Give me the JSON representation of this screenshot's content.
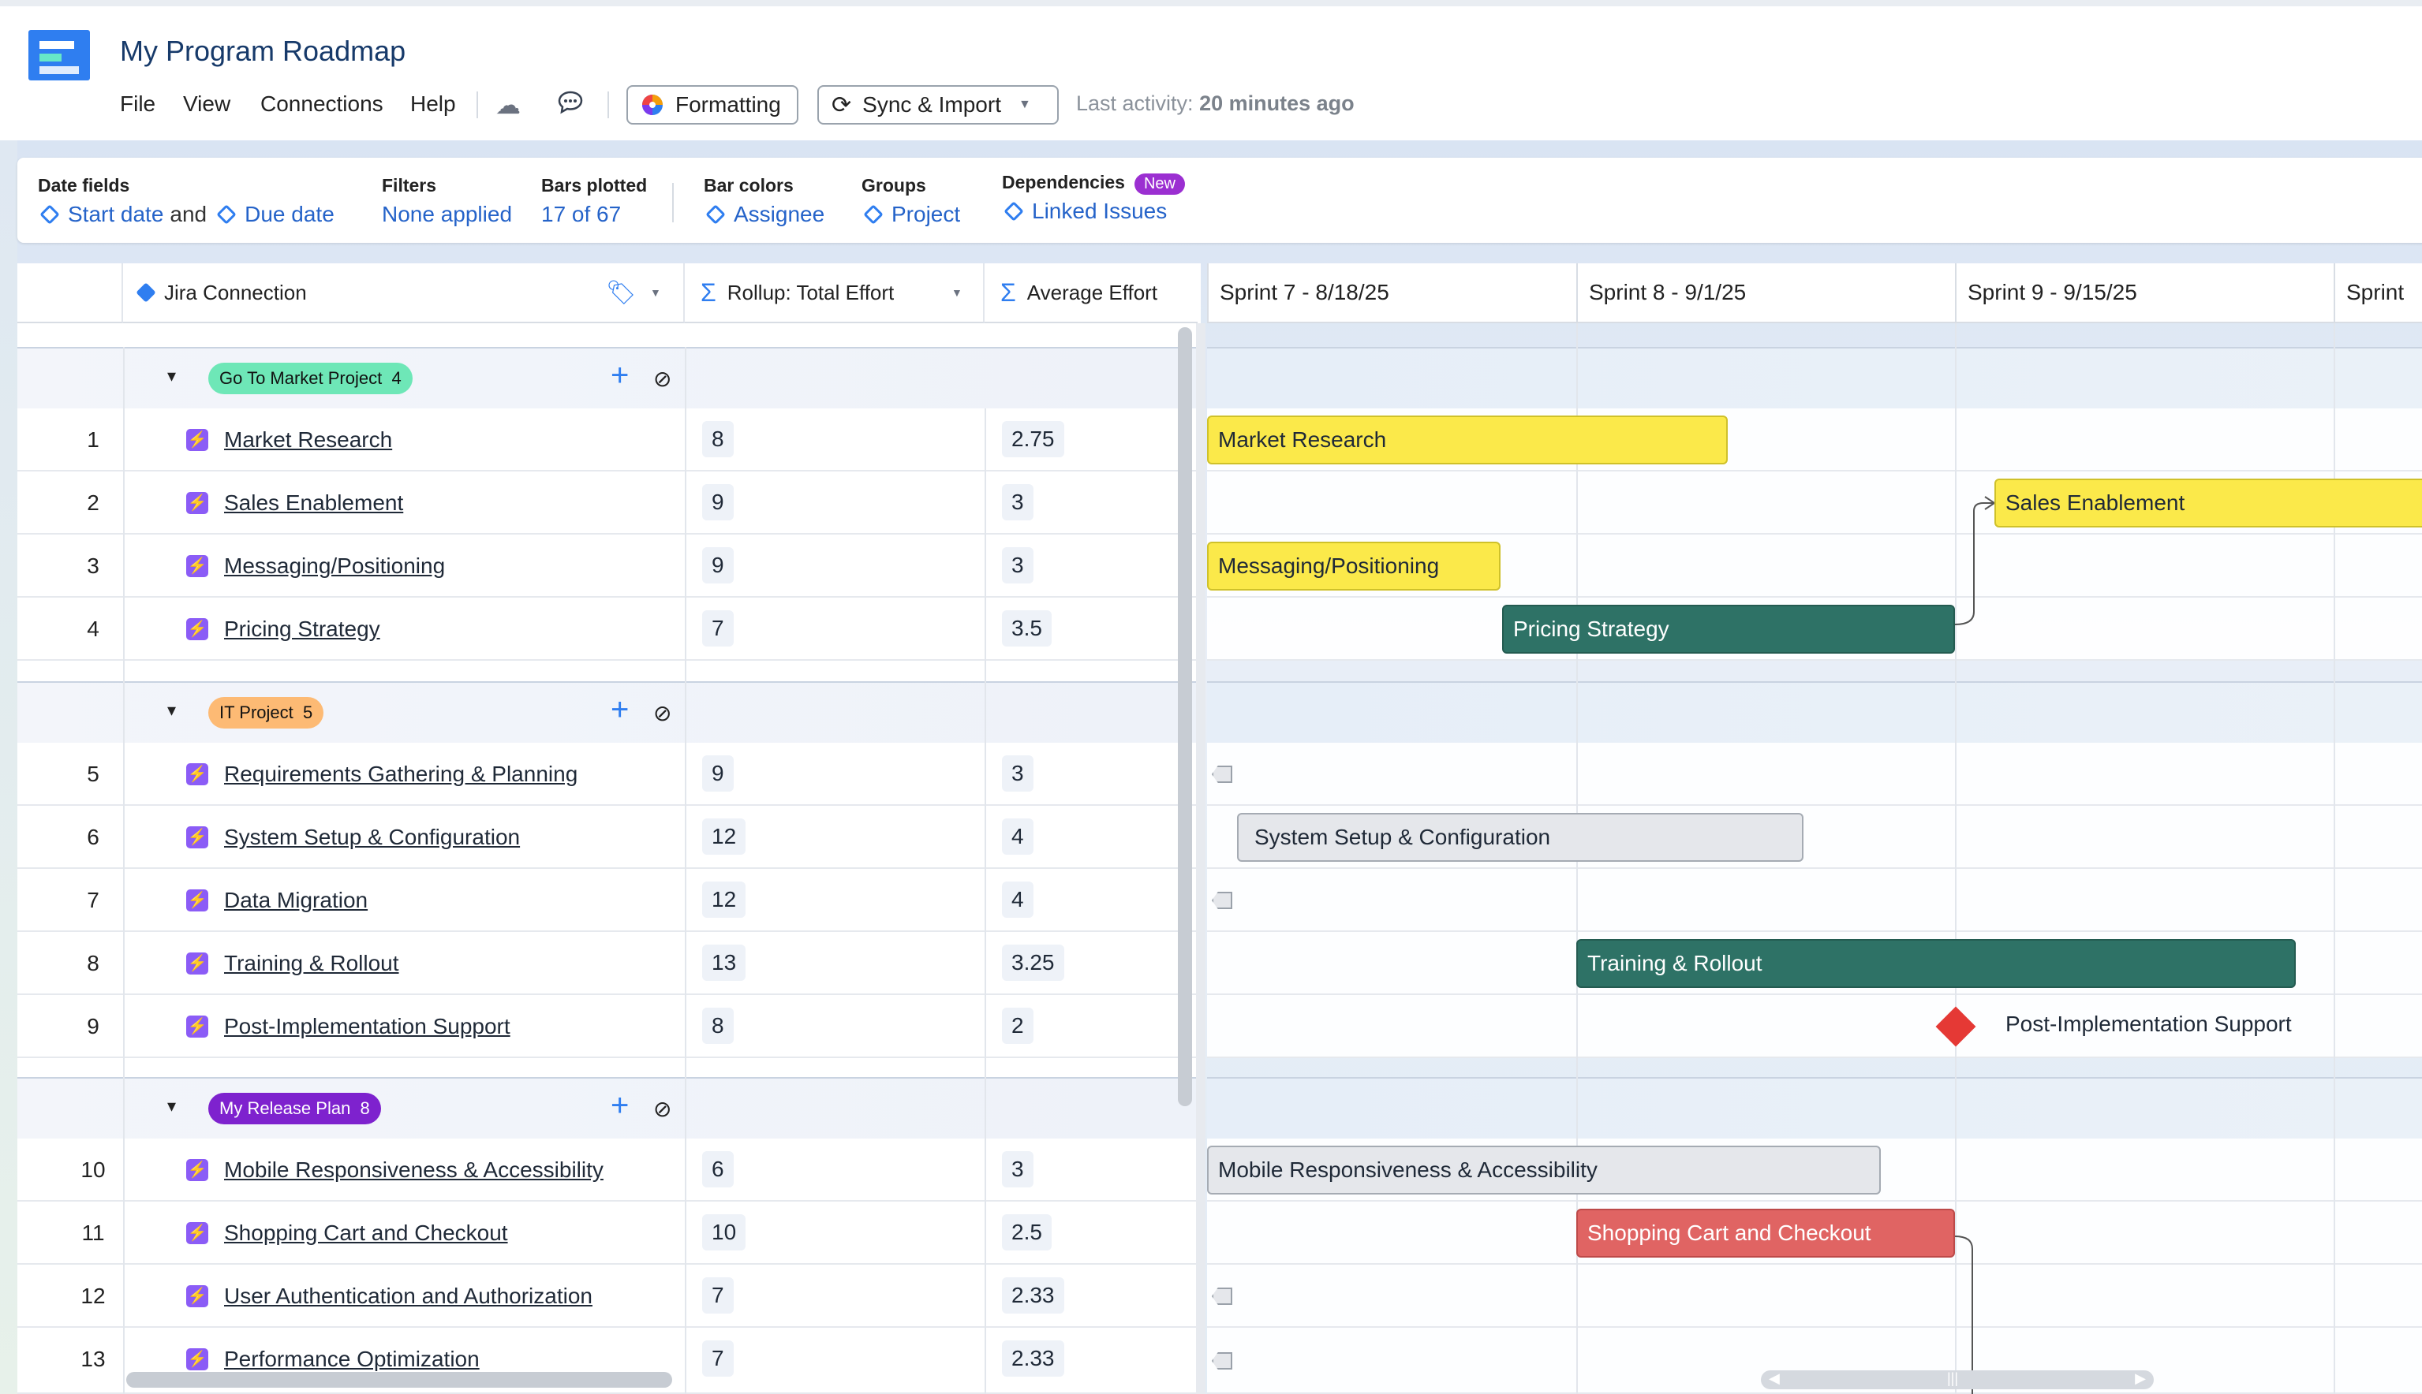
{
  "app": {
    "title": "My Program Roadmap",
    "menu": [
      "File",
      "View",
      "Connections",
      "Help"
    ],
    "formatting_label": "Formatting",
    "sync_label": "Sync & Import",
    "last_activity_label": "Last activity:",
    "last_activity_value": "20 minutes ago"
  },
  "toolbar": {
    "date_fields": {
      "label": "Date fields",
      "start": "Start date",
      "and": "and",
      "due": "Due date"
    },
    "filters": {
      "label": "Filters",
      "value": "None applied"
    },
    "bars_plotted": {
      "label": "Bars plotted",
      "value": "17 of 67"
    },
    "bar_colors": {
      "label": "Bar colors",
      "value": "Assignee"
    },
    "groups": {
      "label": "Groups",
      "value": "Project"
    },
    "dependencies": {
      "label": "Dependencies",
      "badge": "New",
      "value": "Linked Issues"
    }
  },
  "columns": {
    "connection": "Jira Connection",
    "rollup": "Rollup: Total Effort",
    "average": "Average Effort"
  },
  "sprints": [
    "Sprint 7 - 8/18/25",
    "Sprint 8 - 9/1/25",
    "Sprint 9 - 9/15/25",
    "Sprint"
  ],
  "groups": [
    {
      "name": "Go To Market Project",
      "count": "4",
      "color": "#6ee7b7"
    },
    {
      "name": "IT Project",
      "count": "5",
      "color": "#fdba74"
    },
    {
      "name": "My Release Plan",
      "count": "8",
      "color": "#7e22ce"
    }
  ],
  "rows": [
    {
      "num": "1",
      "name": "Market Research",
      "total": "8",
      "avg": "2.75"
    },
    {
      "num": "2",
      "name": "Sales Enablement",
      "total": "9",
      "avg": "3"
    },
    {
      "num": "3",
      "name": "Messaging/Positioning",
      "total": "9",
      "avg": "3"
    },
    {
      "num": "4",
      "name": "Pricing Strategy",
      "total": "7",
      "avg": "3.5"
    },
    {
      "num": "5",
      "name": "Requirements Gathering & Planning",
      "total": "9",
      "avg": "3"
    },
    {
      "num": "6",
      "name": "System Setup & Configuration",
      "total": "12",
      "avg": "4"
    },
    {
      "num": "7",
      "name": "Data Migration",
      "total": "12",
      "avg": "4"
    },
    {
      "num": "8",
      "name": "Training & Rollout",
      "total": "13",
      "avg": "3.25"
    },
    {
      "num": "9",
      "name": "Post-Implementation Support",
      "total": "8",
      "avg": "2"
    },
    {
      "num": "10",
      "name": "Mobile Responsiveness & Accessibility",
      "total": "6",
      "avg": "3"
    },
    {
      "num": "11",
      "name": "Shopping Cart and Checkout",
      "total": "10",
      "avg": "2.5"
    },
    {
      "num": "12",
      "name": "User Authentication and Authorization",
      "total": "7",
      "avg": "2.33"
    },
    {
      "num": "13",
      "name": "Performance Optimization",
      "total": "7",
      "avg": "2.33"
    }
  ],
  "gantt": {
    "bars": [
      "Market Research",
      "Sales Enablement",
      "Messaging/Positioning",
      "Pricing Strategy",
      "System Setup & Configuration",
      "Training & Rollout",
      "Mobile Responsiveness & Accessibility",
      "Shopping Cart and Checkout"
    ],
    "milestone": "Post-Implementation Support"
  },
  "colors": {
    "yellow": "#fbe94a",
    "green": "#2e7266",
    "gray": "#e5e7eb",
    "red": "#e06463",
    "accent": "#2f7ef0"
  }
}
